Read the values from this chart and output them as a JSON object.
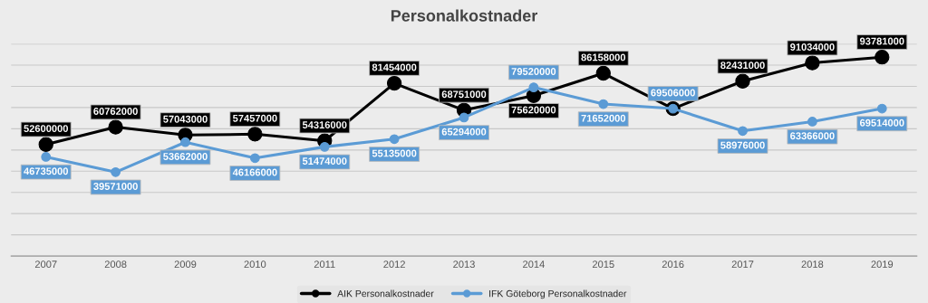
{
  "chart_data": {
    "type": "line",
    "title": "Personalkostnader",
    "categories": [
      "2007",
      "2008",
      "2009",
      "2010",
      "2011",
      "2012",
      "2013",
      "2014",
      "2015",
      "2016",
      "2017",
      "2018",
      "2019"
    ],
    "series": [
      {
        "name": "AIK Personalkostnader",
        "color": "#000000",
        "values": [
          52600000,
          60762000,
          57043000,
          57457000,
          54316000,
          81454000,
          68751000,
          75620000,
          86158000,
          69500000,
          82431000,
          91034000,
          93781000
        ],
        "value_labels": [
          "52600000",
          "60762000",
          "57043000",
          "57457000",
          "54316000",
          "81454000",
          "68751000",
          "75620000",
          "86158000",
          null,
          "82431000",
          "91034000",
          "93781000"
        ]
      },
      {
        "name": "IFK Göteborg Personalkostnader",
        "color": "#5b9bd5",
        "values": [
          46735000,
          39571000,
          53662000,
          46166000,
          51474000,
          55135000,
          65294000,
          79520000,
          71652000,
          69506000,
          58976000,
          63366000,
          69514000
        ],
        "value_labels": [
          "46735000",
          "39571000",
          "53662000",
          "46166000",
          "51474000",
          "55135000",
          "65294000",
          "79520000",
          "71652000",
          "69506000",
          "58976000",
          "63366000",
          "69514000"
        ]
      }
    ],
    "ylim": [
      0,
      100000000
    ],
    "yticks": [
      {
        "value": 0,
        "label": null
      },
      {
        "value": 10000000,
        "label": null
      },
      {
        "value": 20000000,
        "label": null
      },
      {
        "value": 30000000,
        "label": null
      },
      {
        "value": 40000000,
        "label": null
      },
      {
        "value": 50000000,
        "label": null
      },
      {
        "value": 60000000,
        "label": null
      },
      {
        "value": 70000000,
        "label": null
      },
      {
        "value": 80000000,
        "label": null
      },
      {
        "value": 90000000,
        "label": null
      },
      {
        "value": 100000000,
        "label": null
      }
    ],
    "tick_labels": "x",
    "grid": "y",
    "legend": "bottom",
    "marker": "circle",
    "line_style": "solid"
  }
}
